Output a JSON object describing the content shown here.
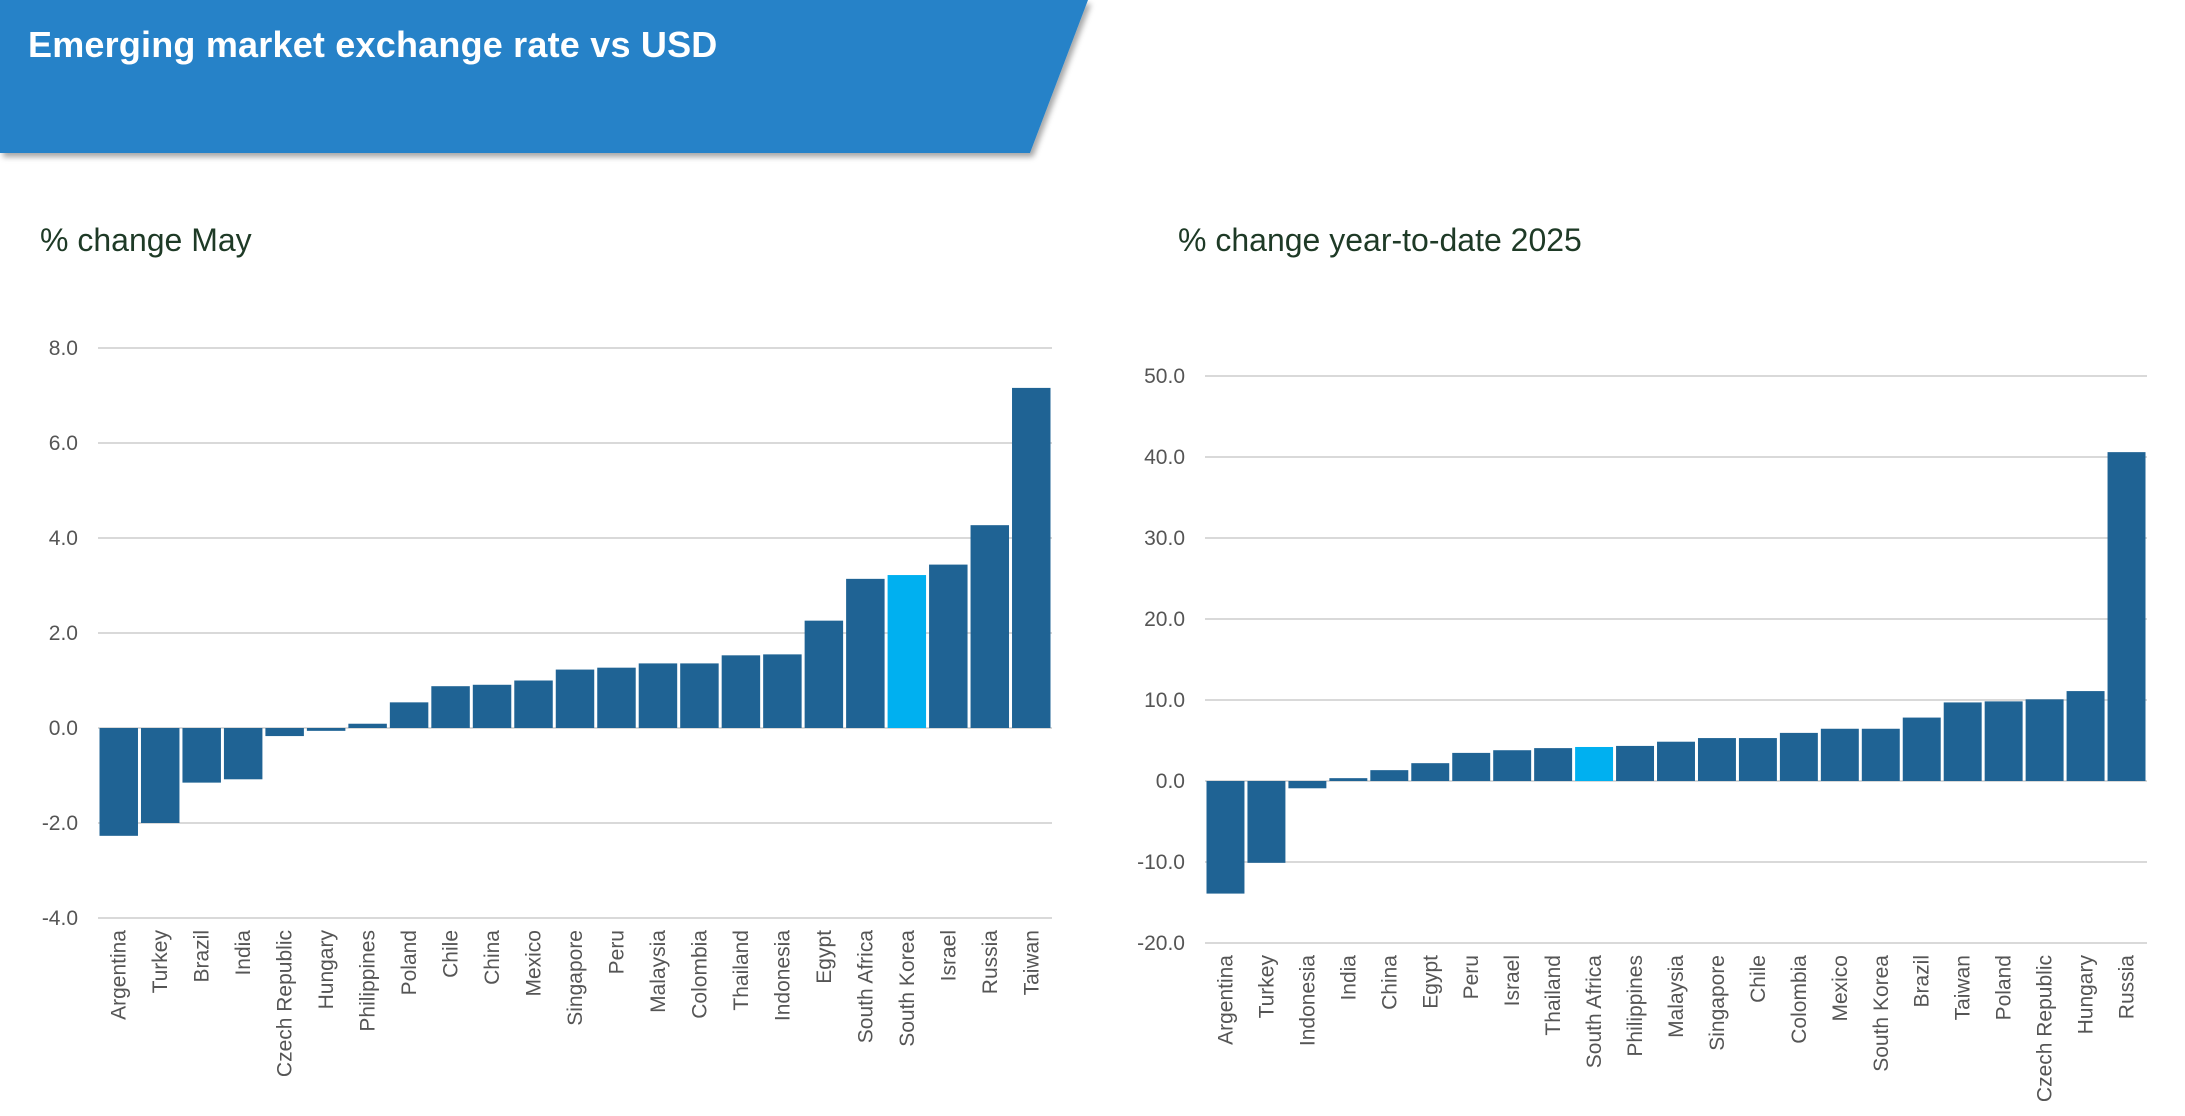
{
  "header": {
    "title": "Emerging market exchange rate vs USD",
    "banner_color": "#2882c8"
  },
  "colors": {
    "bar": "#1f6394",
    "highlight": "#00b0f0",
    "grid": "#d9d9d9",
    "subtitle": "#1e3a26",
    "tick_text": "#555555"
  },
  "chart_data": [
    {
      "type": "bar",
      "title": "% change May",
      "xlabel": "",
      "ylabel": "",
      "ylim": [
        -4,
        8
      ],
      "yticks": [
        -4,
        -2,
        0,
        2,
        4,
        6,
        8
      ],
      "ytick_labels": [
        "-4.0",
        "-2.0",
        "0.0",
        "2.0",
        "4.0",
        "6.0",
        "8.0"
      ],
      "grid": true,
      "legend": "none",
      "highlight": "South Korea",
      "categories": [
        "Argentina",
        "Turkey",
        "Brazil",
        "India",
        "Czech Republic",
        "Hungary",
        "Philippines",
        "Poland",
        "Chile",
        "China",
        "Mexico",
        "Singapore",
        "Peru",
        "Malaysia",
        "Colombia",
        "Thailand",
        "Indonesia",
        "Egypt",
        "South Africa",
        "South Korea",
        "Israel",
        "Russia",
        "Taiwan"
      ],
      "values": [
        -2.27,
        -2.0,
        -1.15,
        -1.08,
        -0.17,
        -0.06,
        0.09,
        0.54,
        0.88,
        0.91,
        1.0,
        1.23,
        1.27,
        1.36,
        1.36,
        1.53,
        1.55,
        2.26,
        3.14,
        3.22,
        3.44,
        4.27,
        7.16
      ]
    },
    {
      "type": "bar",
      "title": "% change year-to-date 2025",
      "xlabel": "",
      "ylabel": "",
      "ylim": [
        -20,
        50
      ],
      "yticks": [
        -20,
        -10,
        0,
        10,
        20,
        30,
        40,
        50
      ],
      "ytick_labels": [
        "-20.0",
        "-10.0",
        "0.0",
        "10.0",
        "20.0",
        "30.0",
        "40.0",
        "50.0"
      ],
      "grid": true,
      "legend": "none",
      "highlight": "South Africa",
      "categories": [
        "Argentina",
        "Turkey",
        "Indonesia",
        "India",
        "China",
        "Egypt",
        "Peru",
        "Israel",
        "Thailand",
        "South Africa",
        "Philippines",
        "Malaysia",
        "Singapore",
        "Chile",
        "Colombia",
        "Mexico",
        "South Korea",
        "Brazil",
        "Taiwan",
        "Poland",
        "Czech Republic",
        "Hungary",
        "Russia"
      ],
      "values": [
        -13.9,
        -10.1,
        -0.9,
        0.35,
        1.34,
        2.2,
        3.47,
        3.8,
        4.06,
        4.2,
        4.33,
        4.85,
        5.3,
        5.3,
        5.94,
        6.45,
        6.45,
        7.83,
        9.7,
        9.83,
        10.08,
        11.1,
        40.6
      ]
    }
  ]
}
